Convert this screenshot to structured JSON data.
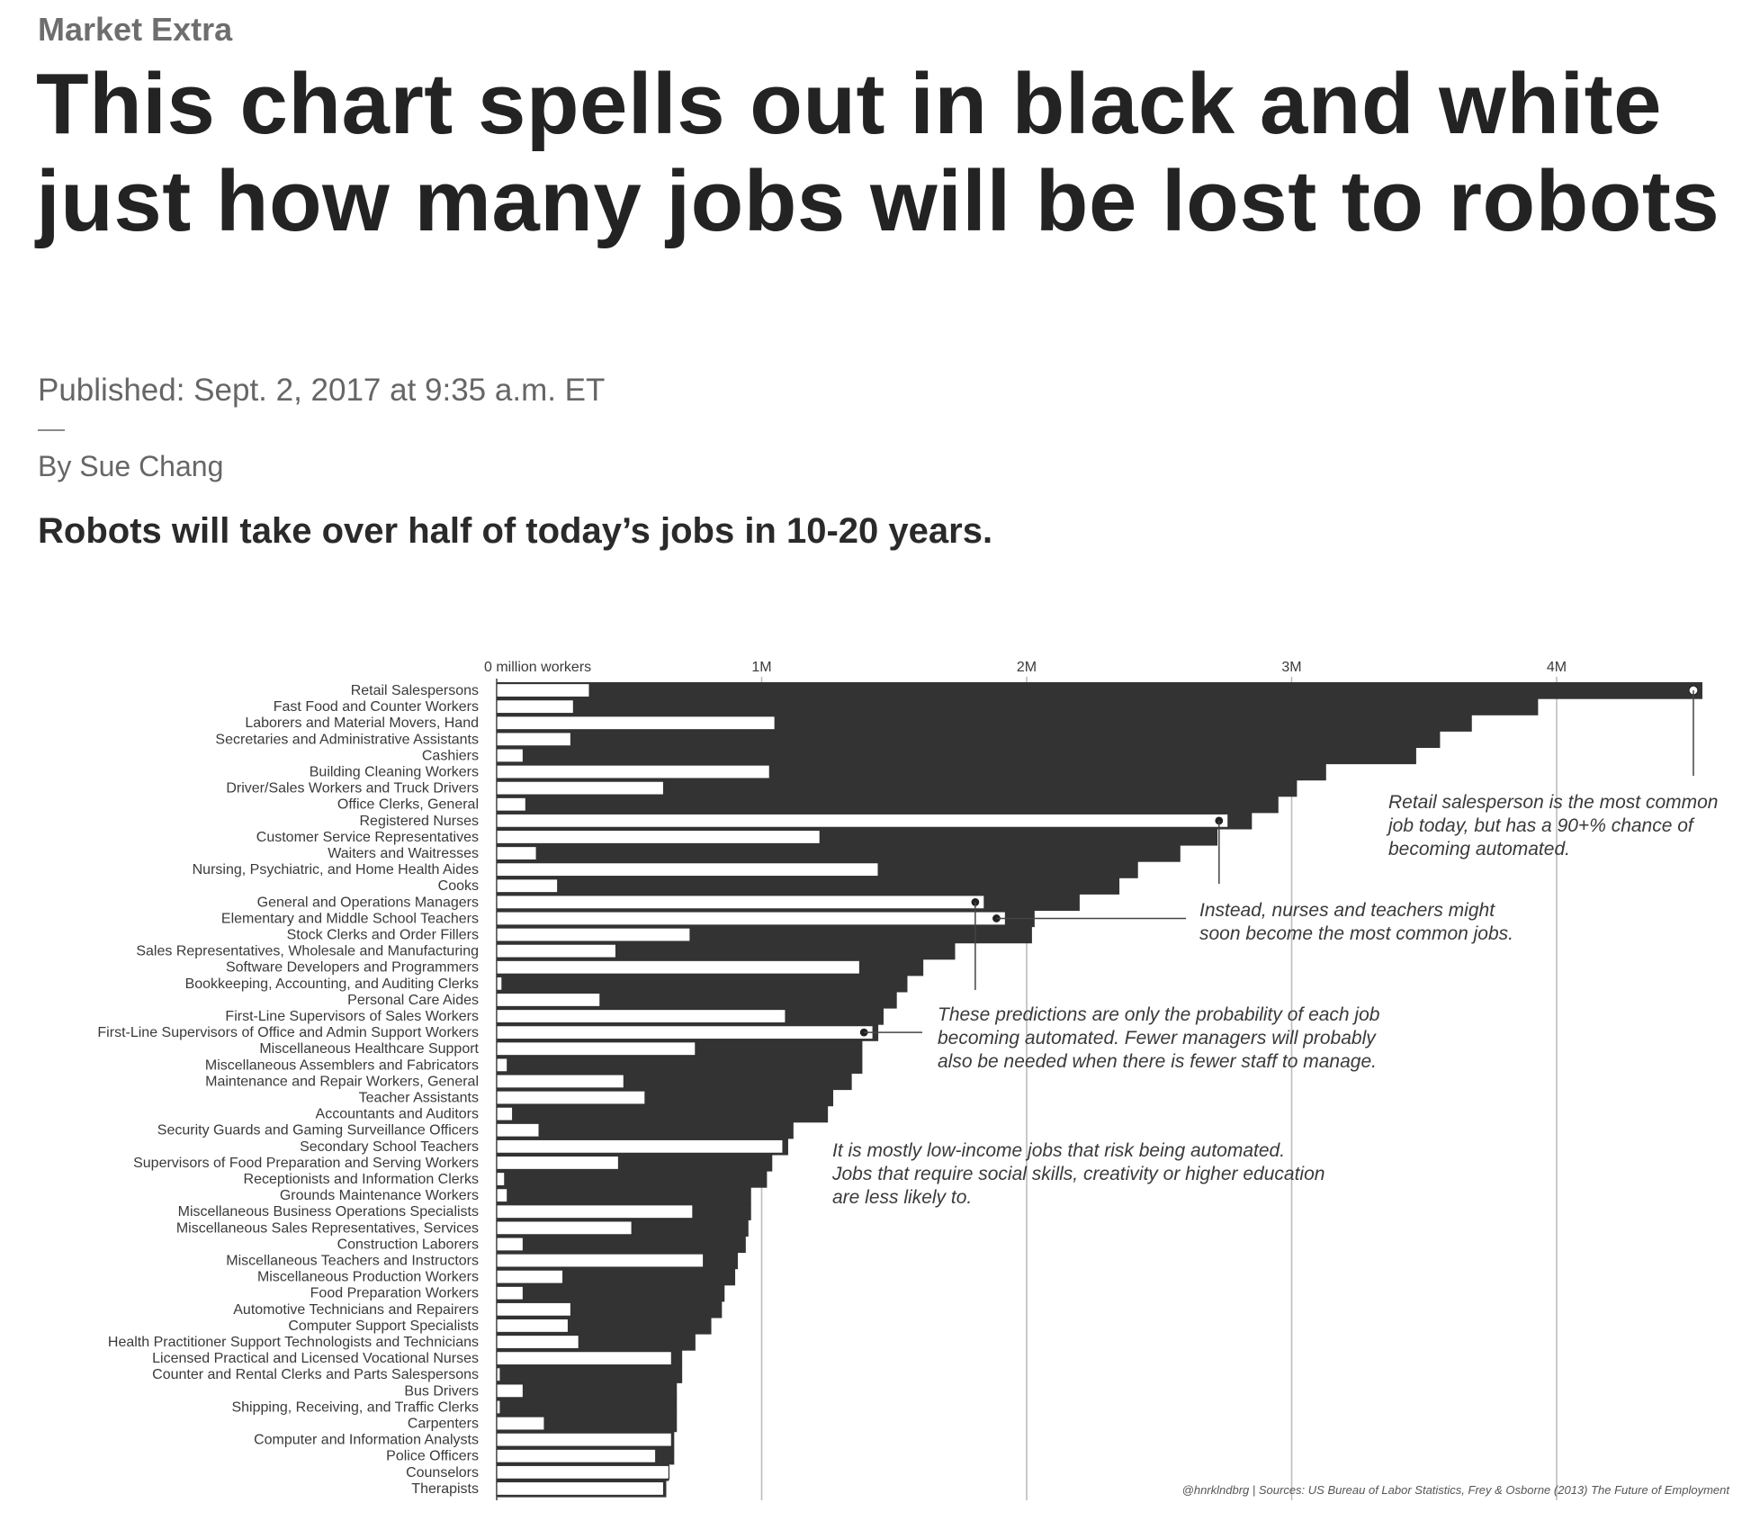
{
  "article": {
    "kicker": "Market Extra",
    "headline": "This chart spells out in black and white just how many jobs will be lost to robots",
    "published": "Published: Sept. 2, 2017 at 9:35 a.m. ET",
    "byline": "By Sue Chang",
    "dek": "Robots will take over half of today’s jobs in 10-20 years."
  },
  "chart_data": {
    "type": "bar",
    "orientation": "horizontal",
    "x_ticks": [
      {
        "value": 0,
        "label": "0 million workers"
      },
      {
        "value": 1000000,
        "label": "1M"
      },
      {
        "value": 2000000,
        "label": "2M"
      },
      {
        "value": 3000000,
        "label": "3M"
      },
      {
        "value": 4000000,
        "label": "4M"
      }
    ],
    "xlim": [
      0,
      4550000
    ],
    "grid": true,
    "colors": {
      "at_risk": "#333333",
      "safe": "#ffffff",
      "grid": "#bdbdbd"
    },
    "categories": [
      "Retail Salespersons",
      "Fast Food and Counter Workers",
      "Laborers and Material Movers, Hand",
      "Secretaries and Administrative Assistants",
      "Cashiers",
      "Building Cleaning Workers",
      "Driver/Sales Workers and Truck Drivers",
      "Office Clerks, General",
      "Registered Nurses",
      "Customer Service Representatives",
      "Waiters and Waitresses",
      "Nursing, Psychiatric, and Home Health Aides",
      "Cooks",
      "General and Operations Managers",
      "Elementary and Middle School Teachers",
      "Stock Clerks and Order Fillers",
      "Sales Representatives, Wholesale and Manufacturing",
      "Software Developers and Programmers",
      "Bookkeeping, Accounting, and Auditing Clerks",
      "Personal Care Aides",
      "First-Line Supervisors of Sales Workers",
      "First-Line Supervisors of Office and Admin Support Workers",
      "Miscellaneous Healthcare Support",
      "Miscellaneous Assemblers and Fabricators",
      "Maintenance and Repair Workers, General",
      "Teacher Assistants",
      "Accountants and Auditors",
      "Security Guards and Gaming Surveillance Officers",
      "Secondary School Teachers",
      "Supervisors of Food Preparation and Serving Workers",
      "Receptionists and Information Clerks",
      "Grounds Maintenance Workers",
      "Miscellaneous Business Operations Specialists",
      "Miscellaneous Sales Representatives, Services",
      "Construction Laborers",
      "Miscellaneous Teachers and Instructors",
      "Miscellaneous Production Workers",
      "Food Preparation Workers",
      "Automotive Technicians and Repairers",
      "Computer Support Specialists",
      "Health Practitioner Support Technologists and Technicians",
      "Licensed Practical and Licensed Vocational Nurses",
      "Counter and Rental Clerks and Parts Salespersons",
      "Bus Drivers",
      "Shipping, Receiving, and Traffic Clerks",
      "Carpenters",
      "Computer and Information Analysts",
      "Police Officers",
      "Counselors",
      "Therapists"
    ],
    "series": [
      {
        "values": [
          4550000,
          3930000,
          3680000,
          3560000,
          3470000,
          3130000,
          3020000,
          2950000,
          2850000,
          2720000,
          2580000,
          2420000,
          2350000,
          2200000,
          2030000,
          2020000,
          1730000,
          1610000,
          1550000,
          1510000,
          1460000,
          1440000,
          1380000,
          1380000,
          1340000,
          1270000,
          1250000,
          1120000,
          1100000,
          1040000,
          1020000,
          960000,
          960000,
          950000,
          940000,
          910000,
          900000,
          860000,
          850000,
          810000,
          750000,
          700000,
          700000,
          680000,
          680000,
          680000,
          670000,
          670000,
          650000,
          640000
        ]
      },
      {
        "values": [
          350000,
          290000,
          1050000,
          280000,
          100000,
          1030000,
          630000,
          110000,
          2760000,
          1220000,
          150000,
          1440000,
          230000,
          1840000,
          1920000,
          730000,
          450000,
          1370000,
          20000,
          390000,
          1090000,
          1420000,
          750000,
          40000,
          480000,
          560000,
          60000,
          160000,
          1080000,
          460000,
          30000,
          40000,
          740000,
          510000,
          100000,
          780000,
          250000,
          100000,
          280000,
          270000,
          310000,
          660000,
          10000,
          100000,
          10000,
          180000,
          660000,
          600000,
          650000,
          630000
        ]
      }
    ],
    "markers_on": [
      "Retail Salespersons",
      "Registered Nurses",
      "General and Operations Managers",
      "Elementary and Middle School Teachers",
      "First-Line Supervisors of Office and Admin Support Workers"
    ],
    "annotations": [
      {
        "lines": [
          "Retail salesperson is the most common",
          "job today, but has a 90+% chance of",
          "becoming automated."
        ]
      },
      {
        "lines": [
          "Instead, nurses and teachers might",
          "soon become the most common jobs."
        ]
      },
      {
        "lines": [
          "These predictions are only the probability of each job",
          "becoming automated. Fewer managers will probably",
          "also be needed when there is fewer staff to manage."
        ]
      },
      {
        "lines": [
          "It is mostly low-income jobs that risk being automated.",
          "Jobs that require social skills, creativity or higher education",
          "are less likely to."
        ]
      }
    ],
    "credit": "@hnrklndbrg | Sources: US Bureau of Labor Statistics, Frey & Osborne (2013) The Future of Employment"
  }
}
